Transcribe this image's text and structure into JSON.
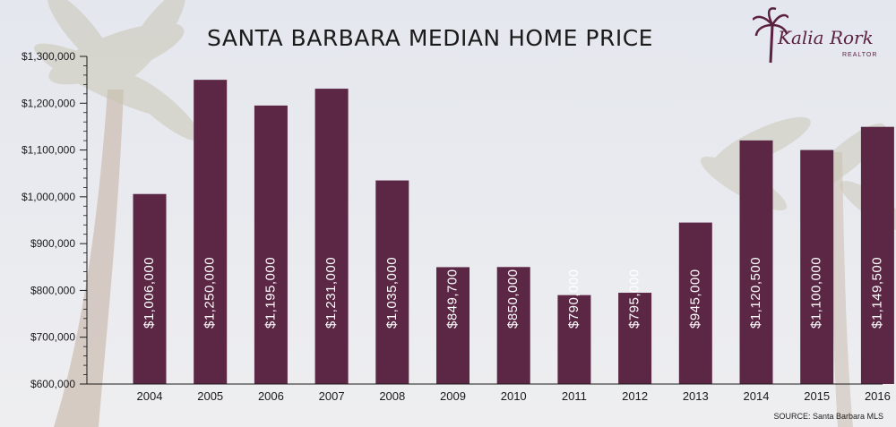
{
  "title": "SANTA BARBARA MEDIAN HOME PRICE",
  "source": "SOURCE: Santa Barbara MLS",
  "logo": {
    "name": "Kalia Rork",
    "subtitle": "REALTOR",
    "icon": "palm-tree-icon"
  },
  "colors": {
    "bar": "#5b2745",
    "bar_label": "#ffffff",
    "axis": "#1a1a1a",
    "background": "#e9ebf0"
  },
  "chart_data": {
    "type": "bar",
    "title": "SANTA BARBARA MEDIAN HOME PRICE",
    "xlabel": "",
    "ylabel": "",
    "categories": [
      "2004",
      "2005",
      "2006",
      "2007",
      "2008",
      "2009",
      "2010",
      "2011",
      "2012",
      "2013",
      "2014",
      "2015",
      "2016"
    ],
    "values": [
      1006000,
      1250000,
      1195000,
      1231000,
      1035000,
      849700,
      850000,
      790000,
      795000,
      945000,
      1120500,
      1100000,
      1149500
    ],
    "data_labels": [
      "$1,006,000",
      "$1,250,000",
      "$1,195,000",
      "$1,231,000",
      "$1,035,000",
      "$849,700",
      "$850,000",
      "$790,000",
      "$795,000",
      "$945,000",
      "$1,120,500",
      "$1,100,000",
      "$1,149,500"
    ],
    "ylim": [
      600000,
      1300000
    ],
    "yticks": [
      600000,
      700000,
      800000,
      900000,
      1000000,
      1100000,
      1200000,
      1300000
    ],
    "ytick_labels": [
      "$600,000",
      "$700,000",
      "$800,000",
      "$900,000",
      "$1,000,000",
      "$1,100,000",
      "$1,200,000",
      "$1,300,000"
    ],
    "grid": false,
    "legend": "none"
  }
}
